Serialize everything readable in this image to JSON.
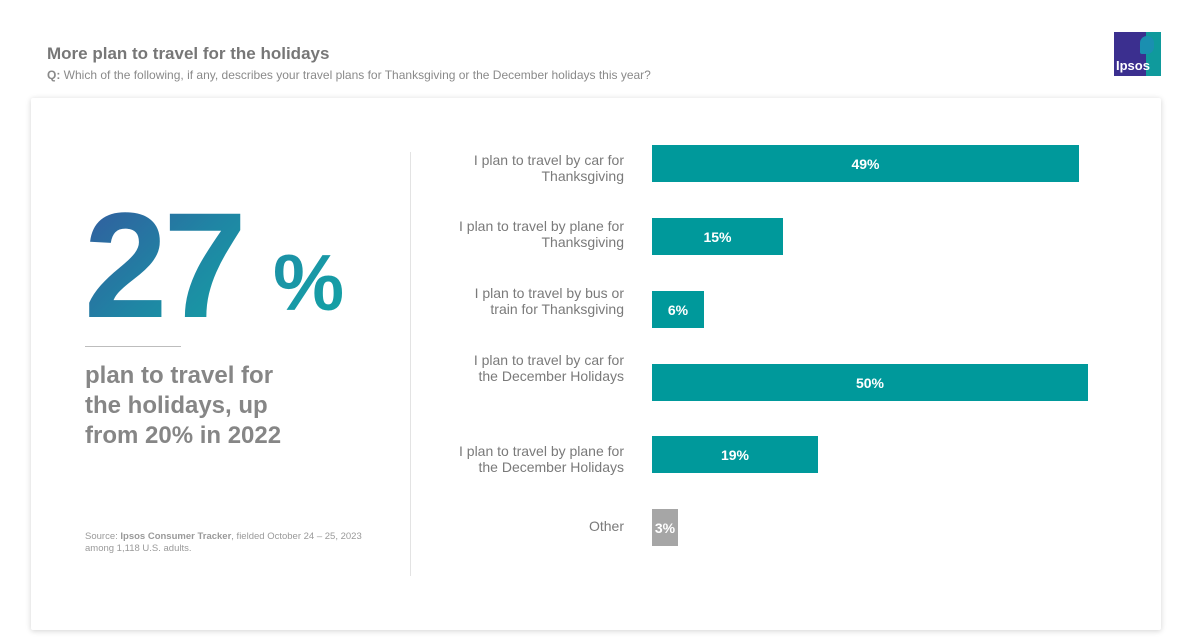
{
  "header": {
    "title": "More plan to travel for the holidays",
    "question_prefix": "Q:",
    "question_text": " Which of the following, if any, describes your travel plans for Thanksgiving or the December holidays this year?"
  },
  "logo": {
    "text": "Ipsos",
    "icon": "ipsos-logo"
  },
  "highlight": {
    "number": "27",
    "percent_sign": "%",
    "caption": "plan to travel for\nthe holidays, up\nfrom 20%  in 2022"
  },
  "source": {
    "prefix": "Source: ",
    "name": "Ipsos Consumer Tracker",
    "detail": ", fielded October 24 – 25, 2023 among 1,118 U.S. adults."
  },
  "colors": {
    "bar": "#00999b",
    "bar_other": "#a6a6a6",
    "text_grey": "#7a7a7a"
  },
  "chart_data": {
    "type": "bar",
    "orientation": "horizontal",
    "categories": [
      "I plan to travel by car for\nThanksgiving",
      "I plan to travel by plane for\nThanksgiving",
      "I plan to travel by bus or\ntrain for Thanksgiving",
      "I plan to travel by car for\nthe December Holidays",
      "I plan to travel by plane for\nthe December Holidays",
      "Other"
    ],
    "values": [
      49,
      15,
      6,
      50,
      19,
      3
    ],
    "value_labels": [
      "49%",
      "15%",
      "6%",
      "50%",
      "19%",
      "3%"
    ],
    "bar_colors": [
      "#00999b",
      "#00999b",
      "#00999b",
      "#00999b",
      "#00999b",
      "#a6a6a6"
    ],
    "xlim": [
      0,
      50
    ],
    "grid": false,
    "legend": "none"
  }
}
